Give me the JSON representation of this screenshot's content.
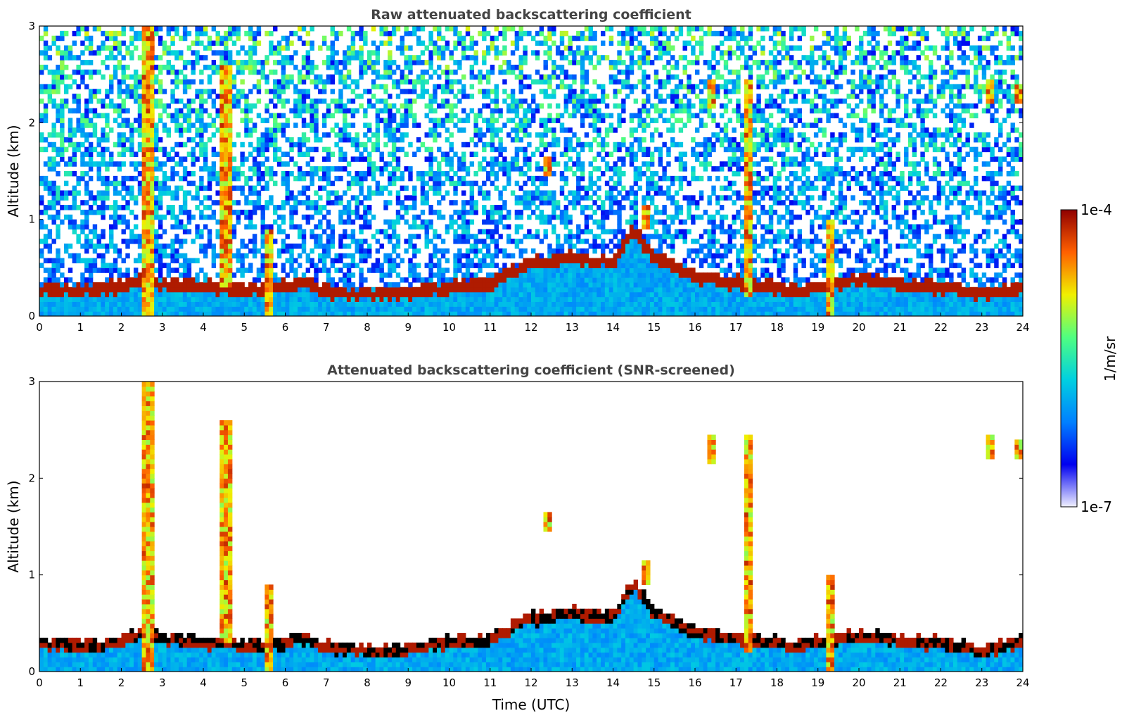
{
  "chart_data": [
    {
      "type": "heatmap",
      "title": "Raw attenuated backscattering coefficient",
      "xlabel": "",
      "ylabel": "Altitude (km)",
      "xlim": [
        0,
        24
      ],
      "ylim": [
        0,
        3
      ],
      "xticks": [
        "0",
        "1",
        "2",
        "3",
        "4",
        "5",
        "6",
        "7",
        "8",
        "9",
        "10",
        "11",
        "12",
        "13",
        "14",
        "15",
        "16",
        "17",
        "18",
        "19",
        "20",
        "21",
        "22",
        "23",
        "24"
      ],
      "yticks": [
        "0",
        "1",
        "2",
        "3"
      ],
      "screened": false,
      "boundary_layer_top_km": [
        [
          0,
          0.28
        ],
        [
          1,
          0.27
        ],
        [
          2,
          0.3
        ],
        [
          2.5,
          0.4
        ],
        [
          3,
          0.33
        ],
        [
          4,
          0.3
        ],
        [
          5,
          0.27
        ],
        [
          6,
          0.3
        ],
        [
          6.5,
          0.35
        ],
        [
          7,
          0.25
        ],
        [
          8,
          0.22
        ],
        [
          9,
          0.24
        ],
        [
          10,
          0.3
        ],
        [
          11,
          0.32
        ],
        [
          11.5,
          0.45
        ],
        [
          12,
          0.55
        ],
        [
          13,
          0.6
        ],
        [
          14,
          0.55
        ],
        [
          14.5,
          0.9
        ],
        [
          15,
          0.6
        ],
        [
          16,
          0.4
        ],
        [
          17,
          0.35
        ],
        [
          18,
          0.3
        ],
        [
          18.5,
          0.25
        ],
        [
          19,
          0.3
        ],
        [
          20,
          0.38
        ],
        [
          21,
          0.32
        ],
        [
          22,
          0.3
        ],
        [
          23,
          0.22
        ],
        [
          24,
          0.3
        ]
      ],
      "cloud_features": [
        {
          "t": 2.65,
          "bottom": 0.0,
          "top": 3.0
        },
        {
          "t": 4.55,
          "bottom": 0.3,
          "top": 2.6
        },
        {
          "t": 5.6,
          "bottom": 0.0,
          "top": 0.9
        },
        {
          "t": 12.4,
          "bottom": 1.45,
          "top": 1.65
        },
        {
          "t": 14.8,
          "bottom": 0.9,
          "top": 1.15
        },
        {
          "t": 16.4,
          "bottom": 2.15,
          "top": 2.45
        },
        {
          "t": 17.3,
          "bottom": 0.2,
          "top": 2.45
        },
        {
          "t": 19.3,
          "bottom": 0.0,
          "top": 1.0
        },
        {
          "t": 23.2,
          "bottom": 2.2,
          "top": 2.45
        },
        {
          "t": 23.9,
          "bottom": 2.2,
          "top": 2.4
        }
      ]
    },
    {
      "type": "heatmap",
      "title": "Attenuated backscattering coefficient (SNR-screened)",
      "xlabel": "Time (UTC)",
      "ylabel": "Altitude (km)",
      "xlim": [
        0,
        24
      ],
      "ylim": [
        0,
        3
      ],
      "xticks": [
        "0",
        "1",
        "2",
        "3",
        "4",
        "5",
        "6",
        "7",
        "8",
        "9",
        "10",
        "11",
        "12",
        "13",
        "14",
        "15",
        "16",
        "17",
        "18",
        "19",
        "20",
        "21",
        "22",
        "23",
        "24"
      ],
      "yticks": [
        "0",
        "1",
        "2",
        "3"
      ],
      "screened": true
    }
  ],
  "colorbar": {
    "label": "1/m/sr",
    "max_label": "1e-4",
    "min_label": "1e-7",
    "colors": [
      "#f0f0ff",
      "#0000f0",
      "#0080ff",
      "#00d0e0",
      "#50ff80",
      "#f0f000",
      "#ff6000",
      "#900000"
    ]
  }
}
